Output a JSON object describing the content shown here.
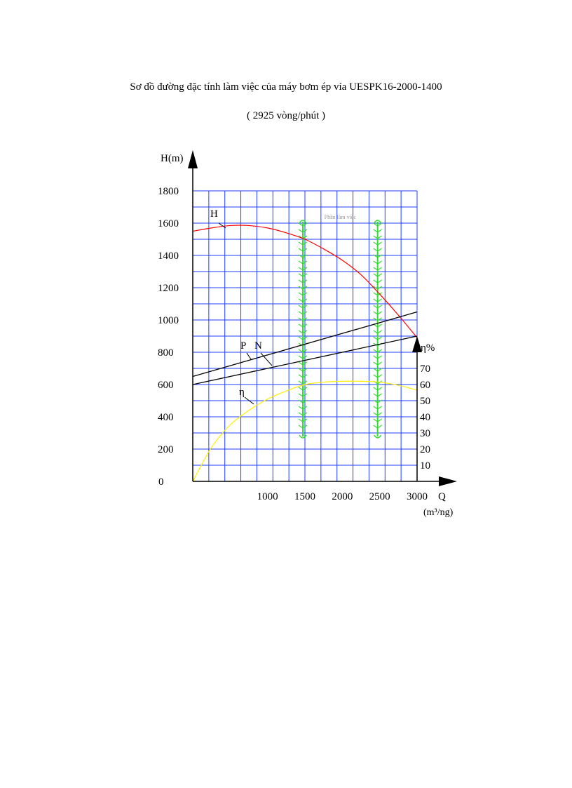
{
  "title": "Sơ đồ đường đặc tính làm việc của máy bơm ép vỉa UESPK16-2000-1400",
  "subtitle": "( 2925 vòng/phút )",
  "chart_data": {
    "type": "line",
    "left_axis": {
      "label": "H(m)",
      "range": [
        0,
        1800
      ],
      "ticks": [
        0,
        200,
        400,
        600,
        800,
        1000,
        1200,
        1400,
        1600,
        1800
      ]
    },
    "right_axis": {
      "label": "η%",
      "range": [
        0,
        70
      ],
      "ticks": [
        10,
        20,
        30,
        40,
        50,
        60,
        70
      ]
    },
    "x_axis": {
      "label": "Q",
      "unit": "(m³/ng)",
      "range": [
        0,
        3000
      ],
      "ticks": [
        1000,
        1500,
        2000,
        2500,
        3000
      ]
    },
    "grid": true,
    "working_zone": {
      "label": "Phần làm việc",
      "x_min": 1500,
      "x_max": 2500,
      "color": "#33dd33"
    },
    "series": [
      {
        "name": "H",
        "axis": "left",
        "color": "#ff0000",
        "x": [
          0,
          250,
          500,
          750,
          1000,
          1250,
          1500,
          1750,
          2000,
          2250,
          2500,
          2750,
          3000
        ],
        "y": [
          1550,
          1570,
          1585,
          1585,
          1570,
          1540,
          1500,
          1440,
          1370,
          1280,
          1160,
          1030,
          890
        ]
      },
      {
        "name": "P",
        "axis": "left",
        "color": "#000000",
        "x": [
          0,
          3000
        ],
        "y": [
          650,
          1050
        ]
      },
      {
        "name": "N",
        "axis": "left",
        "color": "#000000",
        "x": [
          0,
          3000
        ],
        "y": [
          600,
          900
        ]
      },
      {
        "name": "η",
        "axis": "right",
        "color": "#ffee00",
        "x": [
          0,
          250,
          500,
          750,
          1000,
          1250,
          1500,
          1750,
          2000,
          2250,
          2500,
          2750,
          3000
        ],
        "y": [
          0,
          21,
          35,
          44,
          51,
          56,
          60,
          61.5,
          62,
          62,
          61.5,
          59.5,
          56.5
        ]
      }
    ]
  }
}
